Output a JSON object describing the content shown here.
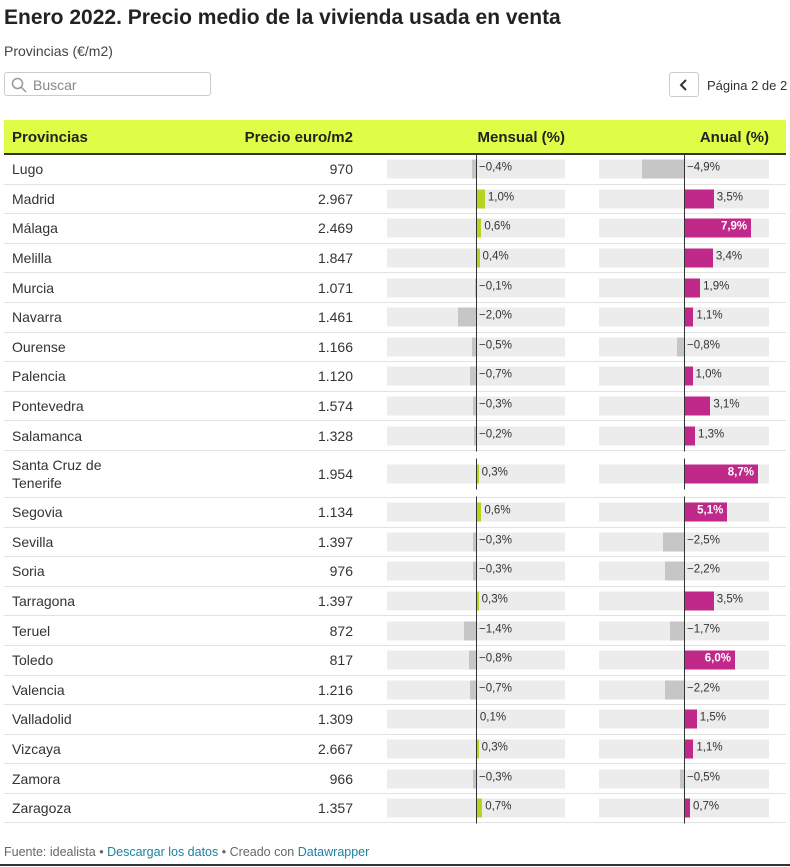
{
  "header": {
    "title": "Enero 2022. Precio medio de la vivienda usada en venta",
    "subtitle": "Provincias (€/m2)"
  },
  "search": {
    "placeholder": "Buscar"
  },
  "pagination": {
    "label": "Página 2 de 2"
  },
  "table": {
    "columns": [
      {
        "label": "Provincias"
      },
      {
        "label": "Precio euro/m2"
      },
      {
        "label": "Mensual (%)",
        "range": [
          -10,
          10
        ],
        "color": "#b5d31f",
        "negative_color": "#c6c6c6"
      },
      {
        "label": "Anual (%)",
        "range": [
          -10,
          10
        ],
        "color": "#c0288a",
        "negative_color": "#c6c6c6"
      }
    ],
    "rows": [
      [
        "Lugo",
        "970",
        {
          "value": -0.4,
          "label": "−0,4%"
        },
        {
          "value": -4.9,
          "label": "−4,9%"
        }
      ],
      [
        "Madrid",
        "2.967",
        {
          "value": 1.0,
          "label": "1,0%"
        },
        {
          "value": 3.5,
          "label": "3,5%"
        }
      ],
      [
        "Málaga",
        "2.469",
        {
          "value": 0.6,
          "label": "0,6%"
        },
        {
          "value": 7.9,
          "label": "7,9%"
        }
      ],
      [
        "Melilla",
        "1.847",
        {
          "value": 0.4,
          "label": "0,4%"
        },
        {
          "value": 3.4,
          "label": "3,4%"
        }
      ],
      [
        "Murcia",
        "1.071",
        {
          "value": -0.1,
          "label": "−0,1%"
        },
        {
          "value": 1.9,
          "label": "1,9%"
        }
      ],
      [
        "Navarra",
        "1.461",
        {
          "value": -2.0,
          "label": "−2,0%"
        },
        {
          "value": 1.1,
          "label": "1,1%"
        }
      ],
      [
        "Ourense",
        "1.166",
        {
          "value": -0.5,
          "label": "−0,5%"
        },
        {
          "value": -0.8,
          "label": "−0,8%"
        }
      ],
      [
        "Palencia",
        "1.120",
        {
          "value": -0.7,
          "label": "−0,7%"
        },
        {
          "value": 1.0,
          "label": "1,0%"
        }
      ],
      [
        "Pontevedra",
        "1.574",
        {
          "value": -0.3,
          "label": "−0,3%"
        },
        {
          "value": 3.1,
          "label": "3,1%"
        }
      ],
      [
        "Salamanca",
        "1.328",
        {
          "value": -0.2,
          "label": "−0,2%"
        },
        {
          "value": 1.3,
          "label": "1,3%"
        }
      ],
      [
        "Santa Cruz de Tenerife",
        "1.954",
        {
          "value": 0.3,
          "label": "0,3%"
        },
        {
          "value": 8.7,
          "label": "8,7%"
        }
      ],
      [
        "Segovia",
        "1.134",
        {
          "value": 0.6,
          "label": "0,6%"
        },
        {
          "value": 5.1,
          "label": "5,1%"
        }
      ],
      [
        "Sevilla",
        "1.397",
        {
          "value": -0.3,
          "label": "−0,3%"
        },
        {
          "value": -2.5,
          "label": "−2,5%"
        }
      ],
      [
        "Soria",
        "976",
        {
          "value": -0.3,
          "label": "−0,3%"
        },
        {
          "value": -2.2,
          "label": "−2,2%"
        }
      ],
      [
        "Tarragona",
        "1.397",
        {
          "value": 0.3,
          "label": "0,3%"
        },
        {
          "value": 3.5,
          "label": "3,5%"
        }
      ],
      [
        "Teruel",
        "872",
        {
          "value": -1.4,
          "label": "−1,4%"
        },
        {
          "value": -1.7,
          "label": "−1,7%"
        }
      ],
      [
        "Toledo",
        "817",
        {
          "value": -0.8,
          "label": "−0,8%"
        },
        {
          "value": 6.0,
          "label": "6,0%"
        }
      ],
      [
        "Valencia",
        "1.216",
        {
          "value": -0.7,
          "label": "−0,7%"
        },
        {
          "value": -2.2,
          "label": "−2,2%"
        }
      ],
      [
        "Valladolid",
        "1.309",
        {
          "value": 0.1,
          "label": "0,1%"
        },
        {
          "value": 1.5,
          "label": "1,5%"
        }
      ],
      [
        "Vizcaya",
        "2.667",
        {
          "value": 0.3,
          "label": "0,3%"
        },
        {
          "value": 1.1,
          "label": "1,1%"
        }
      ],
      [
        "Zamora",
        "966",
        {
          "value": -0.3,
          "label": "−0,3%"
        },
        {
          "value": -0.5,
          "label": "−0,5%"
        }
      ],
      [
        "Zaragoza",
        "1.357",
        {
          "value": 0.7,
          "label": "0,7%"
        },
        {
          "value": 0.7,
          "label": "0,7%"
        }
      ]
    ]
  },
  "footer": {
    "source": "Fuente: idealista",
    "sep1": "•",
    "download": "Descargar los datos",
    "sep2": "•",
    "created": "Creado con",
    "tool": "Datawrapper"
  }
}
